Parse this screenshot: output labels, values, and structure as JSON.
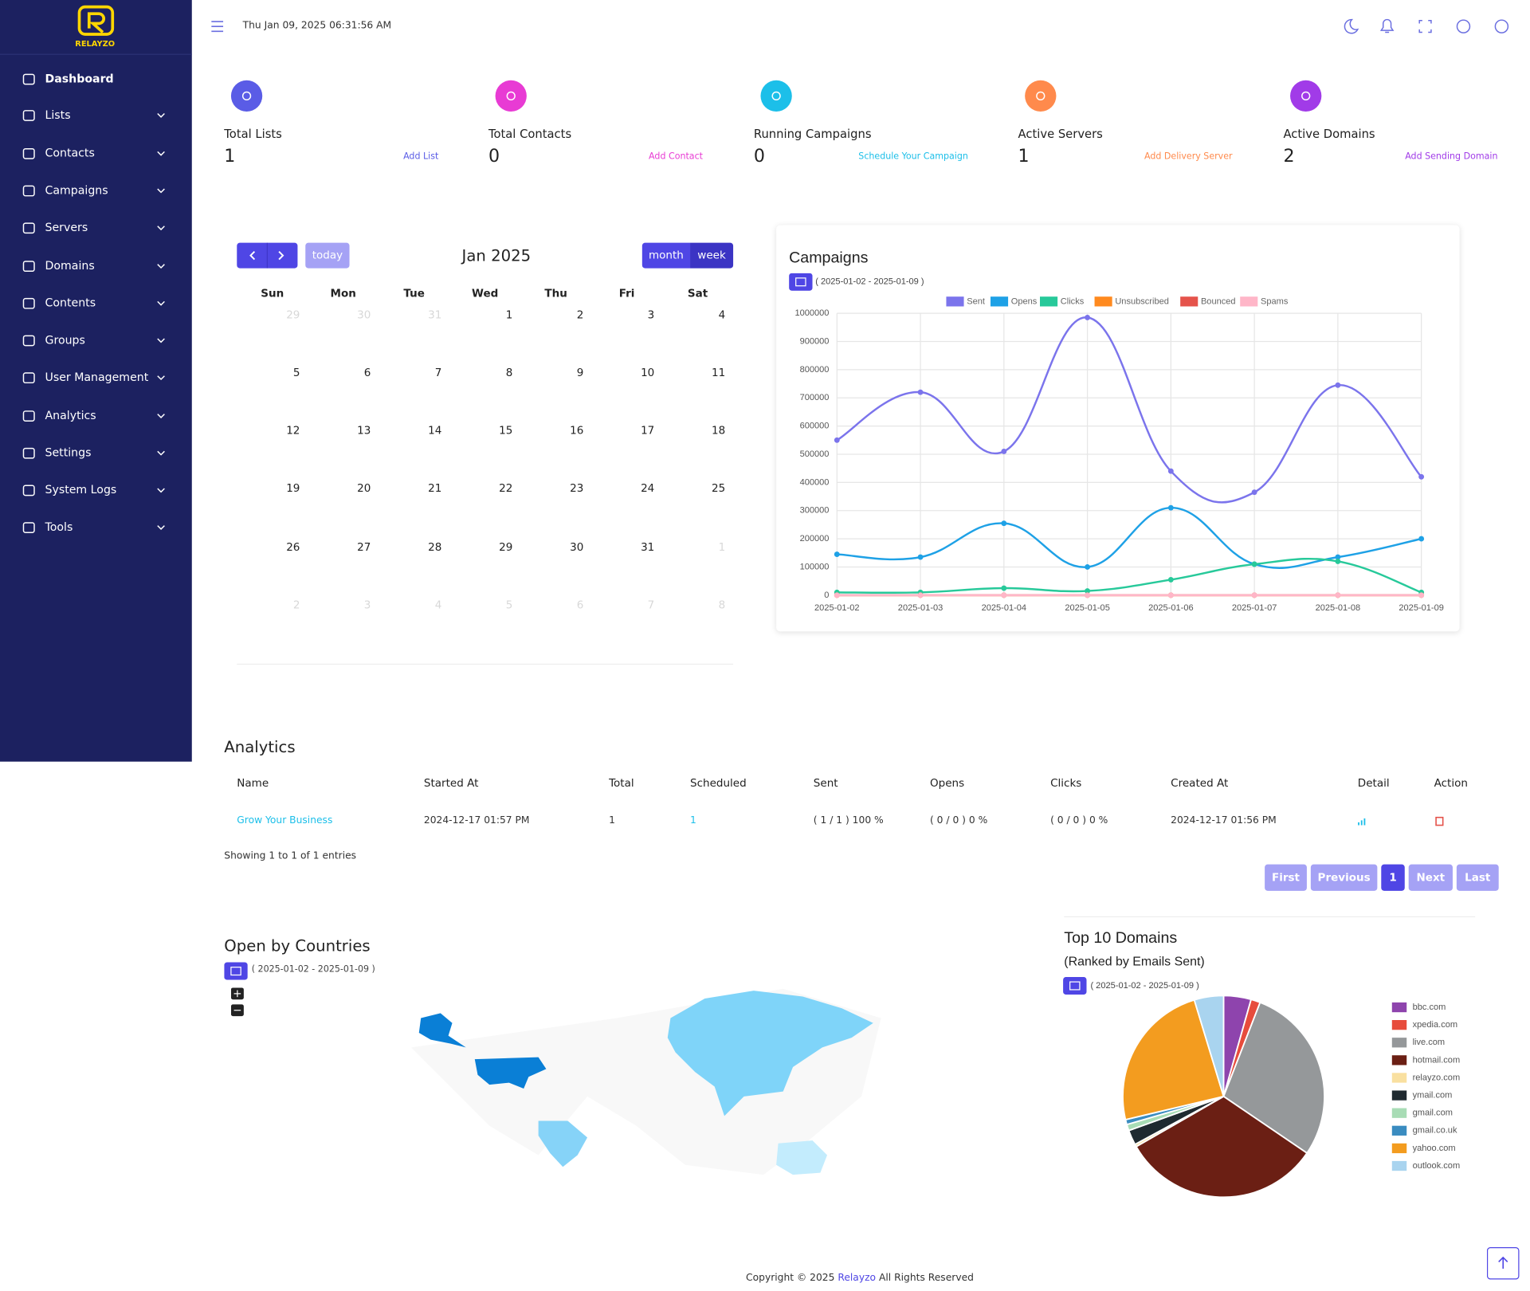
{
  "sidebar": {
    "brand": "RELAYZO",
    "menu": [
      "Dashboard",
      "Lists",
      "Contacts",
      "Campaigns",
      "Servers",
      "Domains",
      "Contents",
      "Groups",
      "User Management",
      "Analytics",
      "Settings",
      "System Logs",
      "Tools"
    ]
  },
  "topbar": {
    "datetime": "Thu Jan 09, 2025 06:31:56 AM"
  },
  "stats": [
    {
      "label": "Total Lists",
      "value": 1,
      "action": "Add List",
      "color": "#5a5ce6"
    },
    {
      "label": "Total Contacts",
      "value": 0,
      "action": "Add Contact",
      "color": "#e83bd4"
    },
    {
      "label": "Running Campaigns",
      "value": 0,
      "action": "Schedule Your Campaign",
      "color": "#1cbfe9"
    },
    {
      "label": "Active Servers",
      "value": 1,
      "action": "Add Delivery Server",
      "color": "#ff8a4c"
    },
    {
      "label": "Active Domains",
      "value": 2,
      "action": "Add Sending Domain",
      "color": "#a13be8"
    }
  ],
  "calendar": {
    "title": "Jan 2025",
    "buttons": {
      "today": "today",
      "month": "month",
      "week": "week"
    },
    "weekdays": [
      "Sun",
      "Mon",
      "Tue",
      "Wed",
      "Thu",
      "Fri",
      "Sat"
    ],
    "weeks": [
      [
        29,
        30,
        31,
        1,
        2,
        3,
        4
      ],
      [
        5,
        6,
        7,
        8,
        9,
        10,
        11
      ],
      [
        12,
        13,
        14,
        15,
        16,
        17,
        18
      ],
      [
        19,
        20,
        21,
        22,
        23,
        24,
        25
      ],
      [
        26,
        27,
        28,
        29,
        30,
        31,
        1
      ],
      [
        2,
        3,
        4,
        5,
        6,
        7,
        8
      ]
    ]
  },
  "chart_data": [
    {
      "type": "line",
      "title": "Campaigns",
      "date_range": "( 2025-01-02 - 2025-01-09 )",
      "x": [
        "2025-01-02",
        "2025-01-03",
        "2025-01-04",
        "2025-01-05",
        "2025-01-06",
        "2025-01-07",
        "2025-01-08",
        "2025-01-09"
      ],
      "series": [
        {
          "name": "Sent",
          "color": "#7b74ec",
          "values": [
            550000,
            720000,
            510000,
            985000,
            440000,
            365000,
            745000,
            420000
          ]
        },
        {
          "name": "Opens",
          "color": "#1ea1e6",
          "values": [
            145000,
            135000,
            255000,
            100000,
            310000,
            110000,
            135000,
            200000
          ]
        },
        {
          "name": "Clicks",
          "color": "#27c99a",
          "values": [
            10000,
            10000,
            25000,
            15000,
            55000,
            110000,
            120000,
            10000
          ]
        },
        {
          "name": "Unsubscribed",
          "color": "#ff8a1f",
          "values": [
            0,
            0,
            0,
            0,
            0,
            0,
            0,
            0
          ]
        },
        {
          "name": "Bounced",
          "color": "#e5534b",
          "values": [
            0,
            0,
            0,
            0,
            0,
            0,
            0,
            0
          ]
        },
        {
          "name": "Spams",
          "color": "#ffb6c8",
          "values": [
            0,
            0,
            0,
            0,
            0,
            0,
            0,
            0
          ]
        }
      ],
      "ylim": [
        0,
        1000000
      ],
      "yticks": [
        0,
        100000,
        200000,
        300000,
        400000,
        500000,
        600000,
        700000,
        800000,
        900000,
        1000000
      ],
      "grid": true,
      "legend": "top"
    },
    {
      "type": "pie",
      "title": "Top 10 Domains",
      "subtitle": "(Ranked by Emails Sent)",
      "date_range": "( 2025-01-02 - 2025-01-09 )",
      "categories": [
        "bbc.com",
        "xpedia.com",
        "live.com",
        "hotmail.com",
        "relayzo.com",
        "ymail.com",
        "gmail.com",
        "gmail.co.uk",
        "yahoo.com",
        "outlook.com"
      ],
      "values": [
        4.4,
        1.5,
        28.6,
        32.2,
        0.4,
        2.4,
        1.0,
        0.8,
        24.0,
        4.7
      ],
      "colors": [
        "#8e44ad",
        "#e74c3c",
        "#95989a",
        "#6b1f14",
        "#f9e0a0",
        "#1f2a30",
        "#a8dcb5",
        "#3a8cc0",
        "#f39c1f",
        "#a9d4ef"
      ],
      "legend": "right"
    }
  ],
  "analytics": {
    "title": "Analytics",
    "columns": [
      "Name",
      "Started At",
      "Total",
      "Scheduled",
      "Sent",
      "Opens",
      "Clicks",
      "Created At",
      "Detail",
      "Action"
    ],
    "rows": [
      [
        "Grow Your Business",
        "2024-12-17 01:57 PM",
        "1",
        "1",
        "( 1 / 1 ) 100 %",
        "( 0 / 0 ) 0 %",
        "( 0 / 0 ) 0 %",
        "2024-12-17 01:56 PM"
      ]
    ],
    "info": "Showing 1 to 1 of 1 entries",
    "pagination": [
      "First",
      "Previous",
      "1",
      "Next",
      "Last"
    ]
  },
  "map": {
    "title": "Open by Countries",
    "date_range": "( 2025-01-02 - 2025-01-09 )"
  },
  "footer": {
    "prefix": "Copyright © 2025",
    "brand": "Relayzo",
    "suffix": "All Rights Reserved"
  }
}
